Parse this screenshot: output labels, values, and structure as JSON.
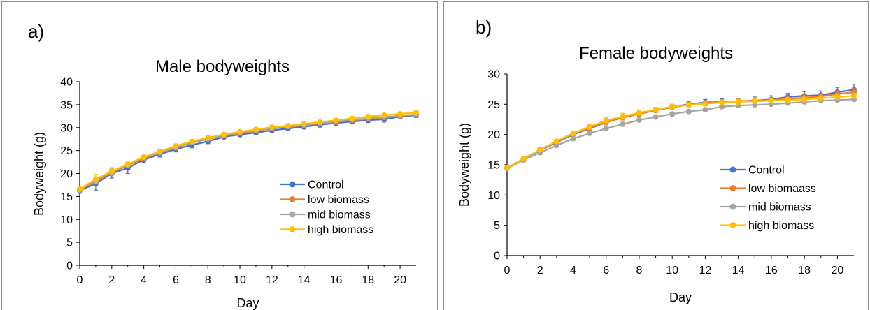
{
  "chart_data": [
    {
      "type": "line",
      "panel_label": "a)",
      "title": "Male bodyweights",
      "xlabel": "Day",
      "ylabel": "Bodyweight (g)",
      "xlim": [
        0,
        21
      ],
      "ylim": [
        0,
        40
      ],
      "xticks": [
        0,
        2,
        4,
        6,
        8,
        10,
        12,
        14,
        16,
        18,
        20
      ],
      "yticks": [
        0,
        5,
        10,
        15,
        20,
        25,
        30,
        35,
        40
      ],
      "grid": false,
      "legend_position": "lower-right",
      "x": [
        0,
        1,
        2,
        3,
        4,
        5,
        6,
        7,
        8,
        9,
        10,
        11,
        12,
        13,
        14,
        15,
        16,
        17,
        18,
        19,
        20,
        21
      ],
      "series": [
        {
          "name": "Control",
          "color": "#4472c4",
          "values": [
            16.3,
            17.8,
            20.0,
            21.2,
            23.0,
            24.2,
            25.3,
            26.2,
            27.0,
            28.0,
            28.5,
            28.9,
            29.4,
            29.8,
            30.2,
            30.6,
            31.0,
            31.3,
            31.6,
            31.8,
            32.4,
            32.7
          ],
          "errors": [
            0.6,
            1.4,
            1.0,
            1.2,
            0.6,
            0.6,
            0.6,
            0.6,
            0.5,
            0.5,
            0.5,
            0.5,
            0.5,
            0.5,
            0.5,
            0.5,
            0.5,
            0.5,
            0.5,
            0.6,
            0.5,
            0.5
          ]
        },
        {
          "name": "low biomass",
          "color": "#ed7d31",
          "values": [
            16.4,
            18.3,
            20.2,
            21.8,
            23.3,
            24.5,
            25.6,
            26.7,
            27.5,
            28.2,
            28.8,
            29.3,
            29.8,
            30.2,
            30.5,
            30.9,
            31.2,
            31.6,
            31.9,
            32.2,
            32.5,
            32.8
          ],
          "errors": [
            0.3,
            0.6,
            0.6,
            0.5,
            0.4,
            0.4,
            0.4,
            0.4,
            0.4,
            0.4,
            0.4,
            0.4,
            0.4,
            0.4,
            0.4,
            0.4,
            0.4,
            0.4,
            0.4,
            0.4,
            0.4,
            0.4
          ]
        },
        {
          "name": "mid biomass",
          "color": "#a5a5a5",
          "values": [
            16.5,
            18.6,
            20.4,
            22.0,
            23.5,
            24.6,
            25.7,
            26.8,
            27.6,
            28.3,
            28.9,
            29.4,
            29.9,
            30.3,
            30.6,
            31.0,
            31.3,
            31.7,
            32.0,
            32.3,
            32.6,
            32.9
          ],
          "errors": [
            0.3,
            0.6,
            0.6,
            0.5,
            0.4,
            0.4,
            0.4,
            0.4,
            0.4,
            0.4,
            0.4,
            0.4,
            0.4,
            0.4,
            0.4,
            0.4,
            0.4,
            0.4,
            0.4,
            0.4,
            0.4,
            0.4
          ]
        },
        {
          "name": "high biomass",
          "color": "#ffc000",
          "values": [
            16.6,
            18.8,
            20.5,
            22.0,
            23.6,
            24.8,
            26.0,
            27.0,
            27.8,
            28.5,
            29.1,
            29.6,
            30.1,
            30.4,
            30.8,
            31.2,
            31.6,
            32.0,
            32.4,
            32.7,
            33.0,
            33.3
          ],
          "errors": [
            0.3,
            1.0,
            0.8,
            0.5,
            0.4,
            0.4,
            0.4,
            0.4,
            0.4,
            0.4,
            0.4,
            0.4,
            0.4,
            0.4,
            0.4,
            0.4,
            0.4,
            0.4,
            0.4,
            0.4,
            0.4,
            0.4
          ]
        }
      ]
    },
    {
      "type": "line",
      "panel_label": "b)",
      "title": "Female bodyweights",
      "xlabel": "Day",
      "ylabel": "Bodyweight (g)",
      "xlim": [
        0,
        21
      ],
      "ylim": [
        0,
        30
      ],
      "xticks": [
        0,
        2,
        4,
        6,
        8,
        10,
        12,
        14,
        16,
        18,
        20
      ],
      "yticks": [
        0,
        5,
        10,
        15,
        20,
        25,
        30
      ],
      "grid": false,
      "legend_position": "lower-right",
      "x": [
        0,
        1,
        2,
        3,
        4,
        5,
        6,
        7,
        8,
        9,
        10,
        11,
        12,
        13,
        14,
        15,
        16,
        17,
        18,
        19,
        20,
        21
      ],
      "series": [
        {
          "name": "Control",
          "color": "#4472c4",
          "values": [
            14.5,
            16.0,
            17.4,
            18.7,
            20.0,
            21.0,
            22.0,
            22.8,
            23.5,
            24.1,
            24.6,
            25.0,
            25.3,
            25.4,
            25.5,
            25.6,
            25.8,
            26.2,
            26.4,
            26.5,
            27.0,
            27.4
          ],
          "errors": [
            0.3,
            0.3,
            0.3,
            0.4,
            0.4,
            0.4,
            0.4,
            0.4,
            0.4,
            0.4,
            0.4,
            0.5,
            0.5,
            0.5,
            0.5,
            0.6,
            0.6,
            0.6,
            0.7,
            0.7,
            0.8,
            0.9
          ]
        },
        {
          "name": "low biomaass",
          "color": "#ed7d31",
          "values": [
            14.5,
            16.0,
            17.5,
            18.8,
            20.1,
            21.1,
            22.0,
            22.8,
            23.4,
            24.0,
            24.5,
            24.9,
            25.2,
            25.4,
            25.5,
            25.6,
            25.7,
            25.9,
            26.1,
            26.3,
            26.7,
            27.0
          ],
          "errors": [
            0.3,
            0.3,
            0.3,
            0.3,
            0.4,
            0.4,
            0.4,
            0.4,
            0.4,
            0.4,
            0.4,
            0.4,
            0.4,
            0.4,
            0.4,
            0.4,
            0.4,
            0.5,
            0.5,
            0.5,
            0.5,
            0.6
          ]
        },
        {
          "name": "mid biomass",
          "color": "#a5a5a5",
          "values": [
            14.4,
            15.8,
            17.0,
            18.2,
            19.3,
            20.2,
            21.0,
            21.7,
            22.4,
            22.9,
            23.4,
            23.8,
            24.1,
            24.6,
            24.8,
            24.9,
            25.0,
            25.2,
            25.4,
            25.6,
            25.7,
            25.8
          ],
          "errors": [
            0.3,
            0.3,
            0.3,
            0.3,
            0.3,
            0.3,
            0.3,
            0.3,
            0.3,
            0.3,
            0.3,
            0.3,
            0.3,
            0.3,
            0.3,
            0.3,
            0.3,
            0.3,
            0.3,
            0.3,
            0.3,
            0.3
          ]
        },
        {
          "name": "high biomass",
          "color": "#ffc000",
          "values": [
            14.5,
            16.0,
            17.5,
            18.9,
            20.2,
            21.3,
            22.3,
            23.0,
            23.6,
            24.1,
            24.6,
            24.9,
            25.1,
            25.3,
            25.4,
            25.5,
            25.6,
            25.7,
            25.8,
            26.0,
            26.2,
            26.4
          ],
          "errors": [
            0.3,
            0.3,
            0.3,
            0.3,
            0.4,
            0.4,
            0.5,
            0.5,
            0.4,
            0.4,
            0.4,
            0.4,
            0.4,
            0.4,
            0.4,
            0.4,
            0.4,
            0.4,
            0.4,
            0.4,
            0.4,
            0.4
          ]
        }
      ]
    }
  ]
}
